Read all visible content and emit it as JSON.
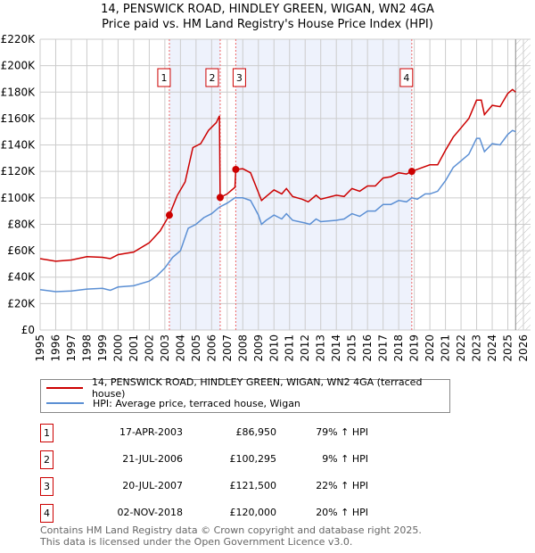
{
  "chart_data": {
    "type": "line",
    "title": "14, PENSWICK ROAD, HINDLEY GREEN, WIGAN, WN2 4GA",
    "subtitle": "Price paid vs. HM Land Registry's House Price Index (HPI)",
    "xlim": [
      1995,
      2026
    ],
    "ylim": [
      0,
      220000
    ],
    "x_ticks": [
      "1995",
      "1996",
      "1997",
      "1998",
      "1999",
      "2000",
      "2001",
      "2002",
      "2003",
      "2004",
      "2005",
      "2006",
      "2007",
      "2008",
      "2009",
      "2010",
      "2011",
      "2012",
      "2013",
      "2014",
      "2015",
      "2016",
      "2017",
      "2018",
      "2019",
      "2020",
      "2021",
      "2022",
      "2023",
      "2024",
      "2025",
      "2026"
    ],
    "y_ticks": [
      "£0",
      "£20K",
      "£40K",
      "£60K",
      "£80K",
      "£100K",
      "£120K",
      "£140K",
      "£160K",
      "£180K",
      "£200K",
      "£220K"
    ],
    "grid": true,
    "colors": {
      "property": "#cc0000",
      "hpi": "#5b8fd4",
      "shade": "#eef2fc",
      "box": "#cc0000"
    },
    "series": [
      {
        "name": "14, PENSWICK ROAD, HINDLEY GREEN, WIGAN, WN2 4GA (terraced house)",
        "key": "property",
        "x": [
          1995,
          1996,
          1997,
          1998,
          1999,
          1999.5,
          2000,
          2001,
          2002,
          2002.7,
          2003.29,
          2003.8,
          2004.3,
          2004.8,
          2005.3,
          2005.8,
          2006.3,
          2006.5,
          2006.55,
          2007,
          2007.5,
          2007.55,
          2008,
          2008.5,
          2009,
          2009.2,
          2009.5,
          2010,
          2010.5,
          2010.8,
          2011.2,
          2011.8,
          2012.2,
          2012.7,
          2013,
          2014,
          2014.5,
          2015,
          2015.5,
          2016,
          2016.5,
          2017,
          2017.5,
          2018,
          2018.5,
          2018.84,
          2019.3,
          2020,
          2020.5,
          2021,
          2021.5,
          2022,
          2022.5,
          2023,
          2023.3,
          2023.5,
          2024,
          2024.5,
          2025,
          2025.3,
          2025.5
        ],
        "y": [
          54,
          52,
          53,
          55.5,
          55,
          54,
          57,
          59,
          66,
          75,
          86.95,
          102,
          112,
          138,
          141,
          151,
          157,
          162,
          100.3,
          103,
          108,
          121.5,
          122,
          119,
          104,
          98,
          101,
          106,
          103,
          107,
          101,
          99,
          97,
          102,
          99,
          102,
          101,
          107,
          105,
          109,
          109,
          115,
          116,
          119,
          118,
          120,
          122,
          125,
          125,
          136,
          146,
          153,
          160,
          174,
          174,
          163,
          170,
          169,
          179,
          182,
          180
        ]
      },
      {
        "name": "HPI: Average price, terraced house, Wigan",
        "key": "hpi",
        "x": [
          1995,
          1996,
          1997,
          1998,
          1999,
          1999.5,
          2000,
          2001,
          2002,
          2002.5,
          2003,
          2003.5,
          2004,
          2004.5,
          2005,
          2005.5,
          2006,
          2006.5,
          2007,
          2007.5,
          2008,
          2008.5,
          2009,
          2009.2,
          2009.5,
          2010,
          2010.5,
          2010.8,
          2011.2,
          2012,
          2012.3,
          2012.7,
          2013,
          2014,
          2014.5,
          2015,
          2015.5,
          2016,
          2016.5,
          2017,
          2017.5,
          2018,
          2018.5,
          2018.84,
          2019.2,
          2019.7,
          2020,
          2020.5,
          2021,
          2021.5,
          2022,
          2022.5,
          2023,
          2023.2,
          2023.5,
          2024,
          2024.5,
          2025,
          2025.3,
          2025.5
        ],
        "y": [
          30.5,
          29,
          29.5,
          31,
          31.5,
          30,
          32.5,
          33.5,
          37,
          41,
          47,
          55,
          60,
          77,
          80,
          85,
          88,
          93,
          96,
          100,
          100,
          98,
          87,
          80,
          83,
          87,
          84,
          88,
          83,
          81,
          80,
          84,
          82,
          83,
          84,
          88,
          86,
          90,
          90,
          95,
          95,
          98,
          97,
          100,
          99,
          103,
          103,
          105,
          113,
          123,
          128,
          133,
          145,
          145,
          135,
          141,
          140,
          148,
          151,
          150
        ]
      }
    ],
    "y_units": "thousands GBP",
    "sales": [
      {
        "label": "1",
        "x": 2003.29,
        "y": 86.95,
        "date": "17-APR-2003",
        "price": "£86,950",
        "hpi": "79% ↑ HPI"
      },
      {
        "label": "2",
        "x": 2006.55,
        "y": 100.295,
        "date": "21-JUL-2006",
        "price": "£100,295",
        "hpi": "9% ↑ HPI"
      },
      {
        "label": "3",
        "x": 2007.55,
        "y": 121.5,
        "date": "20-JUL-2007",
        "price": "£121,500",
        "hpi": "22% ↑ HPI"
      },
      {
        "label": "4",
        "x": 2018.84,
        "y": 120,
        "date": "02-NOV-2018",
        "price": "£120,000",
        "hpi": "20% ↑ HPI"
      }
    ],
    "forecast_from": 2025.5,
    "legend_position": "below"
  },
  "footer": {
    "line1": "Contains HM Land Registry data © Crown copyright and database right 2025.",
    "line2": "This data is licensed under the Open Government Licence v3.0."
  }
}
